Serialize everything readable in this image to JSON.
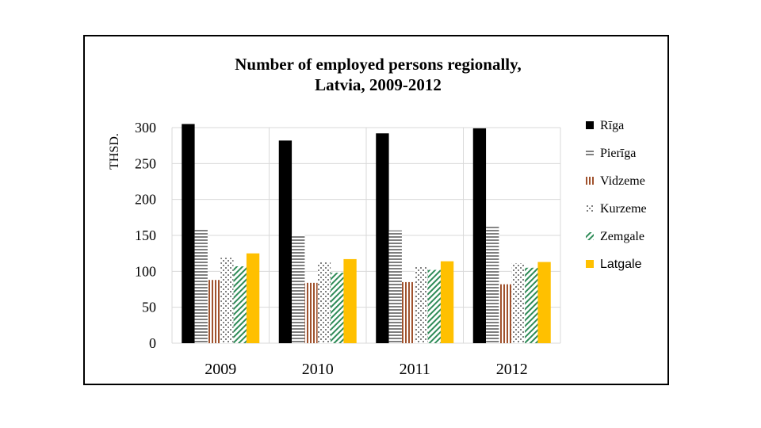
{
  "chart_data": {
    "type": "bar",
    "title": "Number of employed persons regionally, Latvia, 2009-2012",
    "title_lines": [
      "Number of employed persons regionally,",
      "Latvia, 2009-2012"
    ],
    "ylabel": "THSD.",
    "xlabel": "",
    "ylim": [
      0,
      300
    ],
    "yticks": [
      0,
      50,
      100,
      150,
      200,
      250,
      300
    ],
    "categories": [
      "2009",
      "2010",
      "2011",
      "2012"
    ],
    "grid": "vertical category separators",
    "legend_position": "right",
    "series": [
      {
        "name": "Rīga",
        "values": [
          305,
          282,
          292,
          299
        ],
        "color": "#000000",
        "pattern": "solid"
      },
      {
        "name": "Pierīga",
        "values": [
          158,
          151,
          157,
          162
        ],
        "color": "#7f7f7f",
        "pattern": "horizontal-lines"
      },
      {
        "name": "Vidzeme",
        "values": [
          88,
          84,
          85,
          82
        ],
        "color": "#a0522d",
        "pattern": "vertical-lines"
      },
      {
        "name": "Kurzeme",
        "values": [
          119,
          113,
          107,
          111
        ],
        "color": "#808080",
        "pattern": "dots"
      },
      {
        "name": "Zemgale",
        "values": [
          107,
          98,
          102,
          105
        ],
        "color": "#2e8b57",
        "pattern": "diagonal"
      },
      {
        "name": "Latgale",
        "values": [
          125,
          117,
          114,
          113
        ],
        "color": "#ffc000",
        "pattern": "solid"
      }
    ]
  }
}
